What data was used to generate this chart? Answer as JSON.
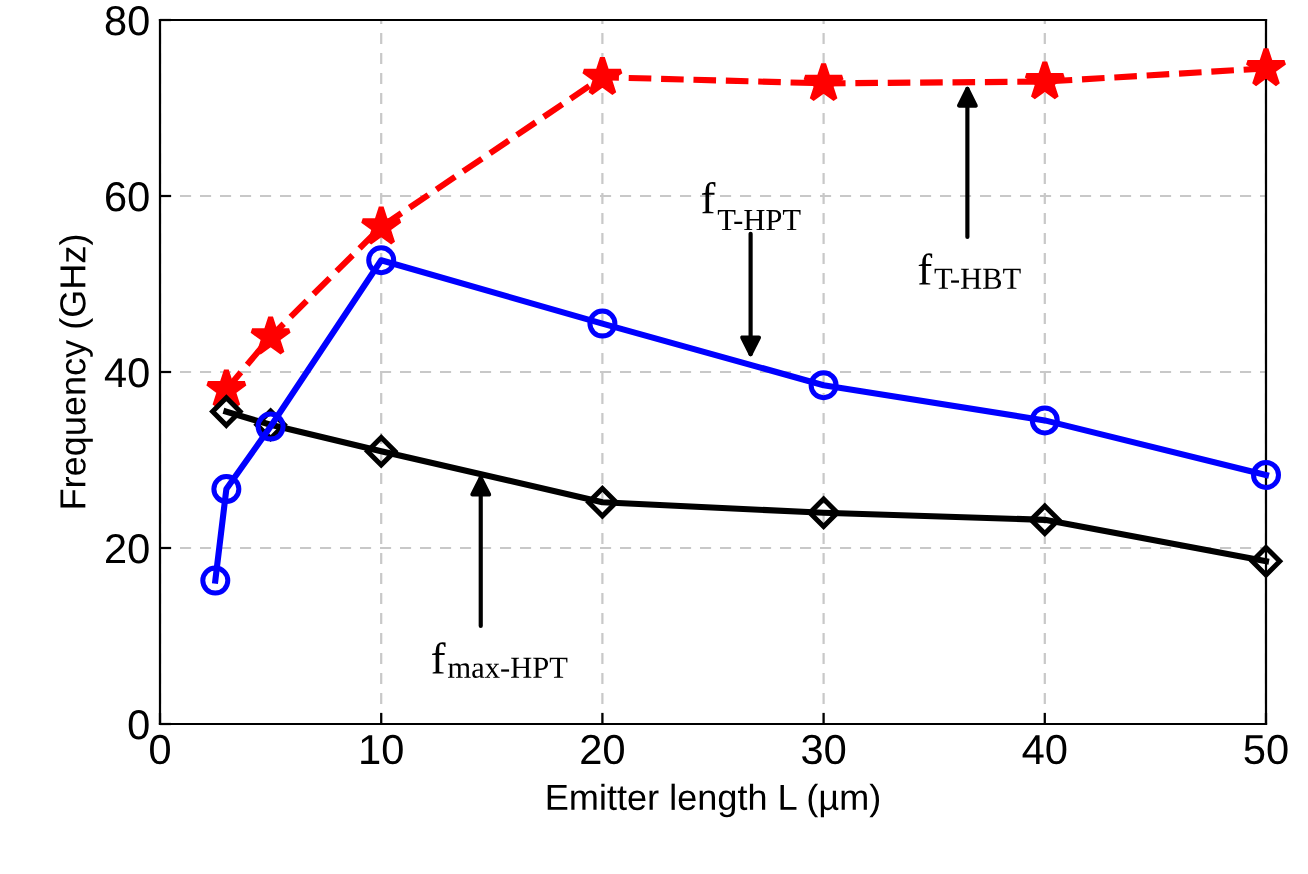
{
  "chart_data": {
    "type": "line",
    "xlabel": "Emitter length L (µm)",
    "ylabel": "Frequency (GHz)",
    "xlim": [
      0,
      50
    ],
    "xticks": [
      0,
      10,
      20,
      30,
      40,
      50
    ],
    "ylim": [
      0,
      80
    ],
    "yticks": [
      0,
      20,
      40,
      60,
      80
    ],
    "grid": true,
    "series": [
      {
        "color": "#ff0000",
        "marker": "star",
        "line_style": "dashed",
        "x": [
          3,
          5,
          10,
          20,
          30,
          40,
          50
        ],
        "values": [
          38,
          44,
          56.5,
          73.5,
          72.8,
          73,
          74.5
        ]
      },
      {
        "color": "#0000ff",
        "marker": "circle",
        "line_style": "solid",
        "x": [
          2.5,
          3,
          5,
          10,
          20,
          30,
          40,
          50
        ],
        "values": [
          16.3,
          26.7,
          33.8,
          52.7,
          45.5,
          38.5,
          34.5,
          28.3
        ]
      },
      {
        "color": "#000000",
        "marker": "diamond",
        "line_style": "solid",
        "x": [
          3,
          5,
          10,
          20,
          30,
          40,
          50
        ],
        "values": [
          35.5,
          34,
          31,
          25.2,
          24,
          23.2,
          18.5
        ]
      }
    ],
    "annotations": [
      {
        "text": "f$_{T-HPT}$",
        "x": 26.7,
        "y": 41.5
      },
      {
        "text": "f$_{T-HBT}$",
        "x": 36.5,
        "y": 72.7
      },
      {
        "text": "f$_{max-HPT}$",
        "x": 14.5,
        "y": 28.5
      }
    ]
  }
}
